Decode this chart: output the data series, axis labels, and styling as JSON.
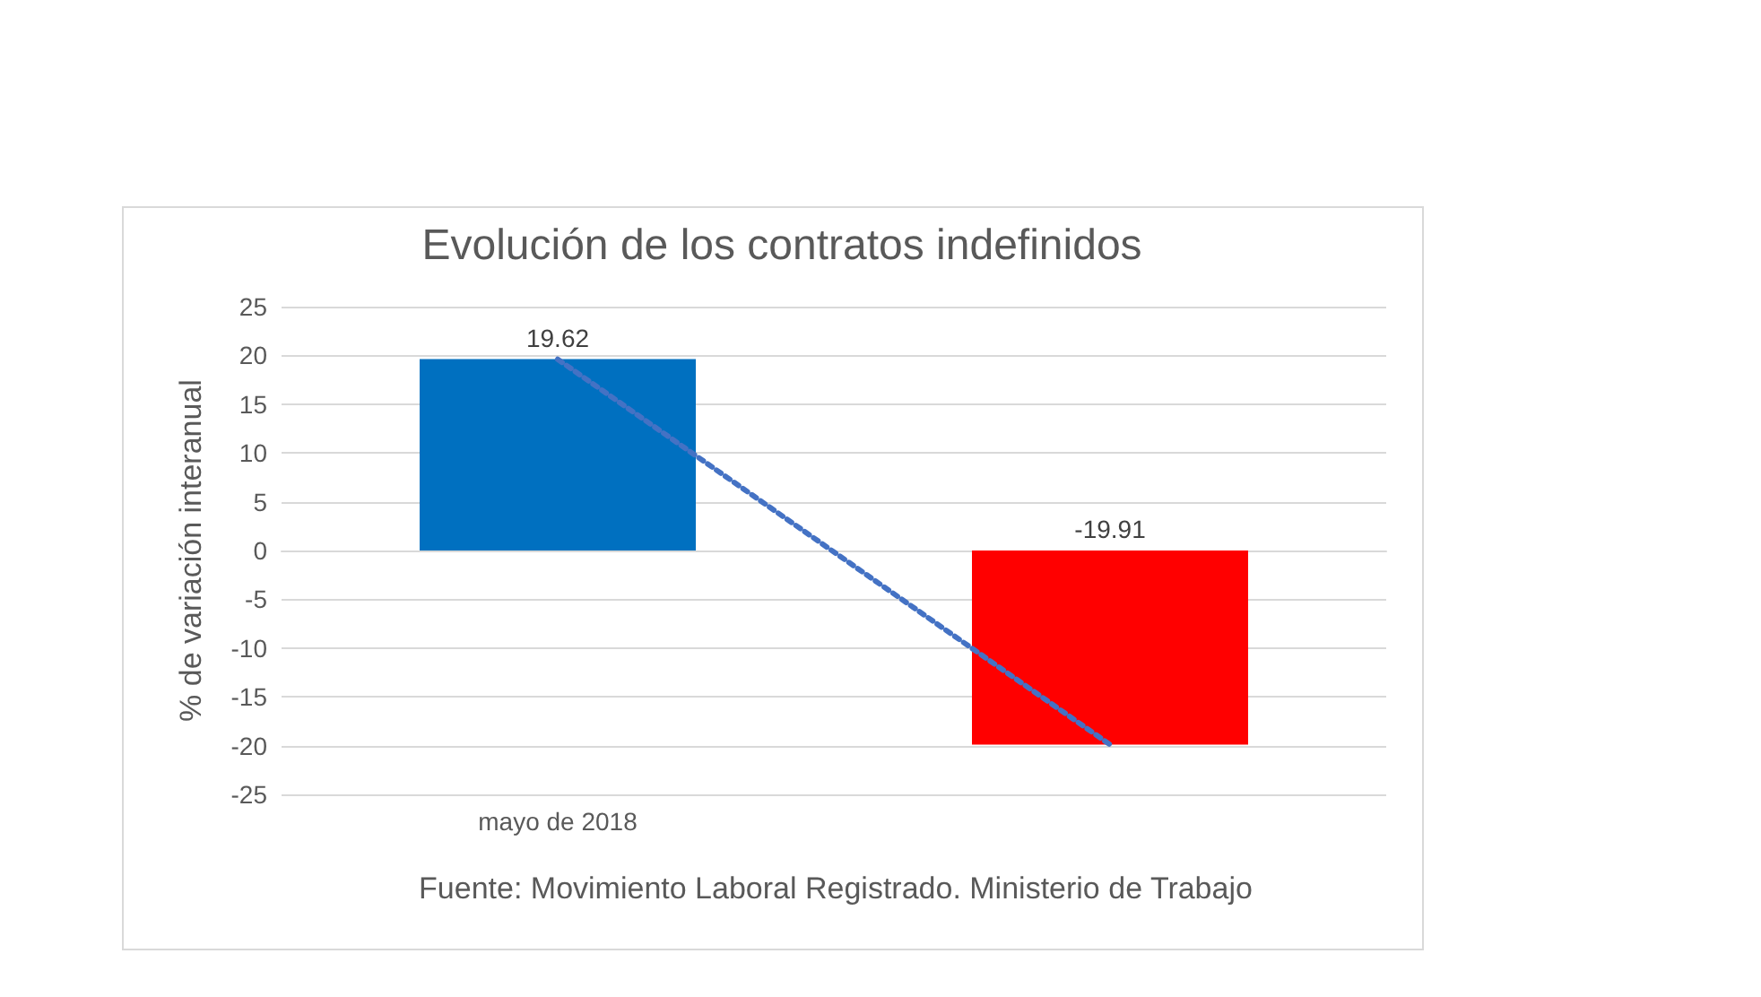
{
  "chart_data": {
    "type": "bar",
    "title": "Evolución de los contratos indefinidos",
    "ylabel": "% de variación interanual",
    "categories": [
      "mayo de 2018",
      null
    ],
    "series": [
      {
        "colors": [
          "#0070c0",
          "#ff0000"
        ],
        "values": [
          19.62,
          -19.91
        ],
        "value_labels": [
          "19.62",
          "-19.91"
        ]
      },
      {
        "type": "line",
        "color": "#4472c4",
        "values": [
          19.6,
          -19.9
        ],
        "line_style": "dotted",
        "marker": "none"
      }
    ],
    "ylim": [
      -25,
      25
    ],
    "yticks": [
      -25,
      -20,
      -15,
      -10,
      -5,
      0,
      5,
      10,
      15,
      20,
      25
    ],
    "grid": "y",
    "annotations": [
      "Fuente: Movimiento Laboral Registrado. Ministerio de Trabajo"
    ]
  }
}
